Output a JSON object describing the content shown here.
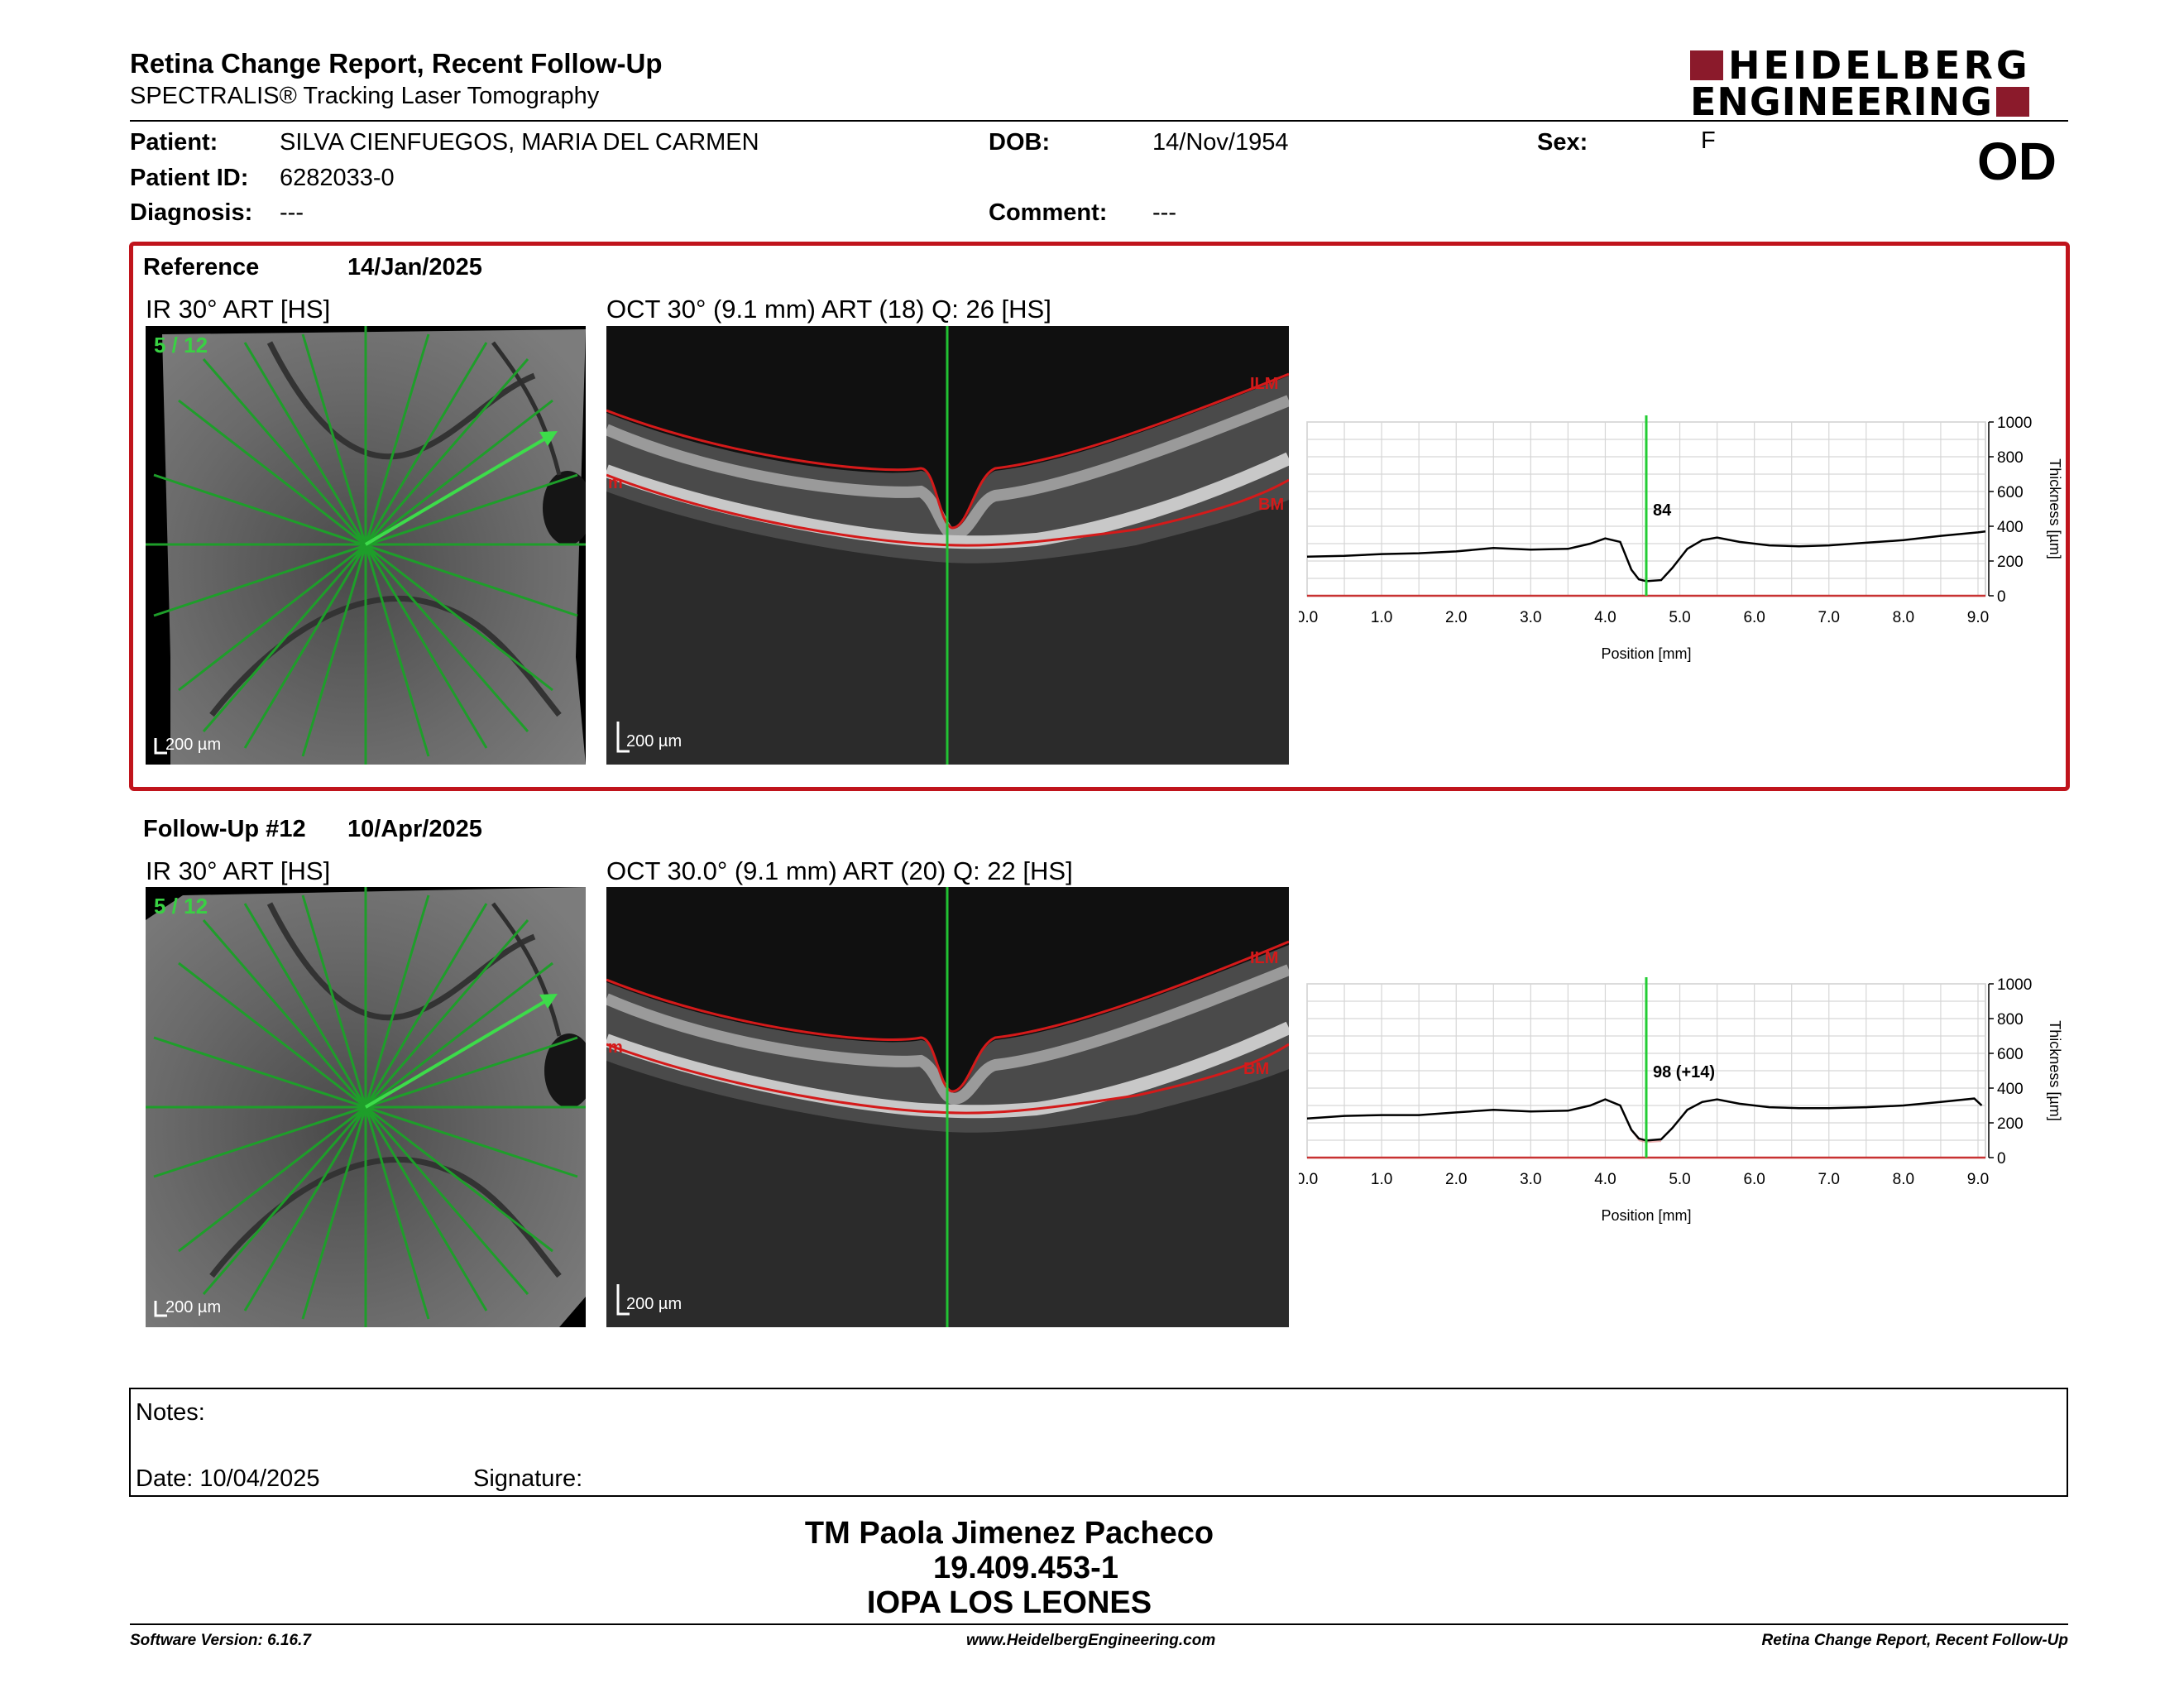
{
  "header": {
    "title": "Retina Change Report, Recent Follow-Up",
    "subtitle": "SPECTRALIS® Tracking Laser Tomography",
    "logo_line1": "HEIDELBERG",
    "logo_line2": "ENGINEERING",
    "brand_color": "#8b1a2b"
  },
  "patient": {
    "patient_label": "Patient:",
    "patient_value": "SILVA CIENFUEGOS, MARIA DEL CARMEN",
    "dob_label": "DOB:",
    "dob_value": "14/Nov/1954",
    "sex_label": "Sex:",
    "sex_value": "F",
    "id_label": "Patient ID:",
    "id_value": "6282033-0",
    "diagnosis_label": "Diagnosis:",
    "diagnosis_value": "---",
    "comment_label": "Comment:",
    "comment_value": "---",
    "eye": "OD"
  },
  "reference": {
    "label": "Reference",
    "date": "14/Jan/2025",
    "ir_label": "IR 30° ART [HS]",
    "oct_label": "OCT 30° (9.1 mm) ART (18) Q: 26 [HS]",
    "scan_index": "5 / 12",
    "scale_ir": "200 µm",
    "scale_oct": "200 µm",
    "ilm": "ILM",
    "bm": "BM",
    "bm_left": "m",
    "marker_value": "84",
    "frame_color": "#c0141c"
  },
  "followup": {
    "label": "Follow-Up #12",
    "date": "10/Apr/2025",
    "ir_label": "IR 30° ART [HS]",
    "oct_label": "OCT 30.0° (9.1 mm) ART (20) Q: 22 [HS]",
    "scan_index": "5 / 12",
    "scale_ir": "200 µm",
    "scale_oct": "200 µm",
    "ilm": "ILM",
    "bm": "BM",
    "bm_left": "m",
    "marker_value": "98 (+14)"
  },
  "chart_data": [
    {
      "type": "line",
      "xlabel": "Position [mm]",
      "ylabel": "Thickness [µm]",
      "xlim": [
        0,
        9.1
      ],
      "ylim": [
        0,
        1000
      ],
      "xticks": [
        "0.0",
        "1.0",
        "2.0",
        "3.0",
        "4.0",
        "5.0",
        "6.0",
        "7.0",
        "8.0",
        "9.0"
      ],
      "yticks": [
        "0",
        "200",
        "400",
        "600",
        "800",
        "1000"
      ],
      "marker_x": 4.55,
      "grid": true,
      "series": [
        {
          "x": [
            0,
            0.5,
            1,
            1.5,
            2,
            2.5,
            3,
            3.5,
            3.8,
            4.0,
            4.2,
            4.35,
            4.45,
            4.55,
            4.75,
            4.9,
            5.1,
            5.3,
            5.5,
            5.8,
            6.2,
            6.6,
            7.0,
            7.5,
            8.0,
            8.5,
            9.0,
            9.1
          ],
          "y": [
            225,
            230,
            240,
            245,
            255,
            275,
            265,
            270,
            300,
            330,
            310,
            150,
            95,
            84,
            90,
            160,
            270,
            320,
            335,
            310,
            290,
            285,
            290,
            305,
            320,
            345,
            365,
            370
          ]
        }
      ]
    },
    {
      "type": "line",
      "xlabel": "Position [mm]",
      "ylabel": "Thickness [µm]",
      "xlim": [
        0,
        9.1
      ],
      "ylim": [
        0,
        1000
      ],
      "xticks": [
        "0.0",
        "1.0",
        "2.0",
        "3.0",
        "4.0",
        "5.0",
        "6.0",
        "7.0",
        "8.0",
        "9.0"
      ],
      "yticks": [
        "0",
        "200",
        "400",
        "600",
        "800",
        "1000"
      ],
      "marker_x": 4.55,
      "grid": true,
      "series": [
        {
          "x": [
            0,
            0.5,
            1,
            1.5,
            2,
            2.5,
            3,
            3.5,
            3.8,
            4.0,
            4.2,
            4.35,
            4.45,
            4.55,
            4.75,
            4.9,
            5.1,
            5.3,
            5.5,
            5.8,
            6.2,
            6.6,
            7.0,
            7.5,
            8.0,
            8.5,
            8.95,
            9.05
          ],
          "y": [
            225,
            240,
            245,
            245,
            260,
            275,
            265,
            270,
            300,
            335,
            300,
            160,
            110,
            98,
            105,
            170,
            275,
            320,
            335,
            310,
            290,
            285,
            285,
            290,
            300,
            320,
            340,
            300
          ]
        }
      ]
    }
  ],
  "notes": {
    "notes_label": "Notes:",
    "date_label": "Date: 10/04/2025",
    "signature_label": "Signature:"
  },
  "signatory": {
    "name": "TM Paola Jimenez Pacheco",
    "id": "19.409.453-1",
    "org": "IOPA LOS LEONES"
  },
  "footer": {
    "left": "Software Version: 6.16.7",
    "center": "www.HeidelbergEngineering.com",
    "right": "Retina Change Report, Recent Follow-Up"
  }
}
